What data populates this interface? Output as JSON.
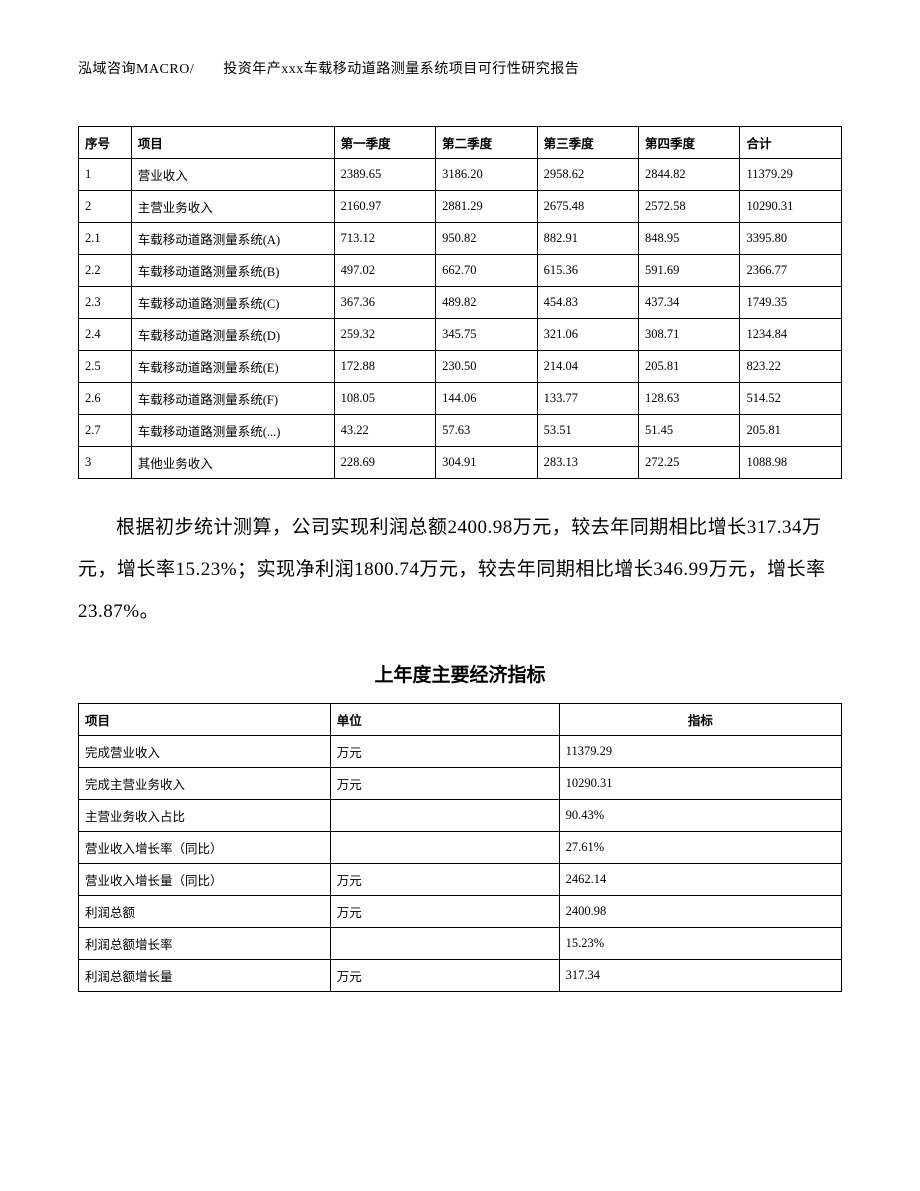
{
  "header": "泓域咨询MACRO/　　投资年产xxx车载移动道路测量系统项目可行性研究报告",
  "table1": {
    "headers": {
      "seq": "序号",
      "item": "项目",
      "q1": "第一季度",
      "q2": "第二季度",
      "q3": "第三季度",
      "q4": "第四季度",
      "total": "合计"
    },
    "rows": [
      {
        "seq": "1",
        "item": "营业收入",
        "q1": "2389.65",
        "q2": "3186.20",
        "q3": "2958.62",
        "q4": "2844.82",
        "total": "11379.29"
      },
      {
        "seq": "2",
        "item": "主营业务收入",
        "q1": "2160.97",
        "q2": "2881.29",
        "q3": "2675.48",
        "q4": "2572.58",
        "total": "10290.31"
      },
      {
        "seq": "2.1",
        "item": "车载移动道路测量系统(A)",
        "q1": "713.12",
        "q2": "950.82",
        "q3": "882.91",
        "q4": "848.95",
        "total": "3395.80"
      },
      {
        "seq": "2.2",
        "item": "车载移动道路测量系统(B)",
        "q1": "497.02",
        "q2": "662.70",
        "q3": "615.36",
        "q4": "591.69",
        "total": "2366.77"
      },
      {
        "seq": "2.3",
        "item": "车载移动道路测量系统(C)",
        "q1": "367.36",
        "q2": "489.82",
        "q3": "454.83",
        "q4": "437.34",
        "total": "1749.35"
      },
      {
        "seq": "2.4",
        "item": "车载移动道路测量系统(D)",
        "q1": "259.32",
        "q2": "345.75",
        "q3": "321.06",
        "q4": "308.71",
        "total": "1234.84"
      },
      {
        "seq": "2.5",
        "item": "车载移动道路测量系统(E)",
        "q1": "172.88",
        "q2": "230.50",
        "q3": "214.04",
        "q4": "205.81",
        "total": "823.22"
      },
      {
        "seq": "2.6",
        "item": "车载移动道路测量系统(F)",
        "q1": "108.05",
        "q2": "144.06",
        "q3": "133.77",
        "q4": "128.63",
        "total": "514.52"
      },
      {
        "seq": "2.7",
        "item": "车载移动道路测量系统(...)",
        "q1": "43.22",
        "q2": "57.63",
        "q3": "53.51",
        "q4": "51.45",
        "total": "205.81"
      },
      {
        "seq": "3",
        "item": "其他业务收入",
        "q1": "228.69",
        "q2": "304.91",
        "q3": "283.13",
        "q4": "272.25",
        "total": "1088.98"
      }
    ]
  },
  "paragraph": "根据初步统计测算，公司实现利润总额2400.98万元，较去年同期相比增长317.34万元，增长率15.23%；实现净利润1800.74万元，较去年同期相比增长346.99万元，增长率23.87%。",
  "subtitle": "上年度主要经济指标",
  "table2": {
    "headers": {
      "item": "项目",
      "unit": "单位",
      "value": "指标"
    },
    "rows": [
      {
        "item": "完成营业收入",
        "unit": "万元",
        "value": "11379.29"
      },
      {
        "item": "完成主营业务收入",
        "unit": "万元",
        "value": "10290.31"
      },
      {
        "item": "主营业务收入占比",
        "unit": "",
        "value": "90.43%"
      },
      {
        "item": "营业收入增长率（同比）",
        "unit": "",
        "value": "27.61%"
      },
      {
        "item": "营业收入增长量（同比）",
        "unit": "万元",
        "value": "2462.14"
      },
      {
        "item": "利润总额",
        "unit": "万元",
        "value": "2400.98"
      },
      {
        "item": "利润总额增长率",
        "unit": "",
        "value": "15.23%"
      },
      {
        "item": "利润总额增长量",
        "unit": "万元",
        "value": "317.34"
      }
    ]
  }
}
